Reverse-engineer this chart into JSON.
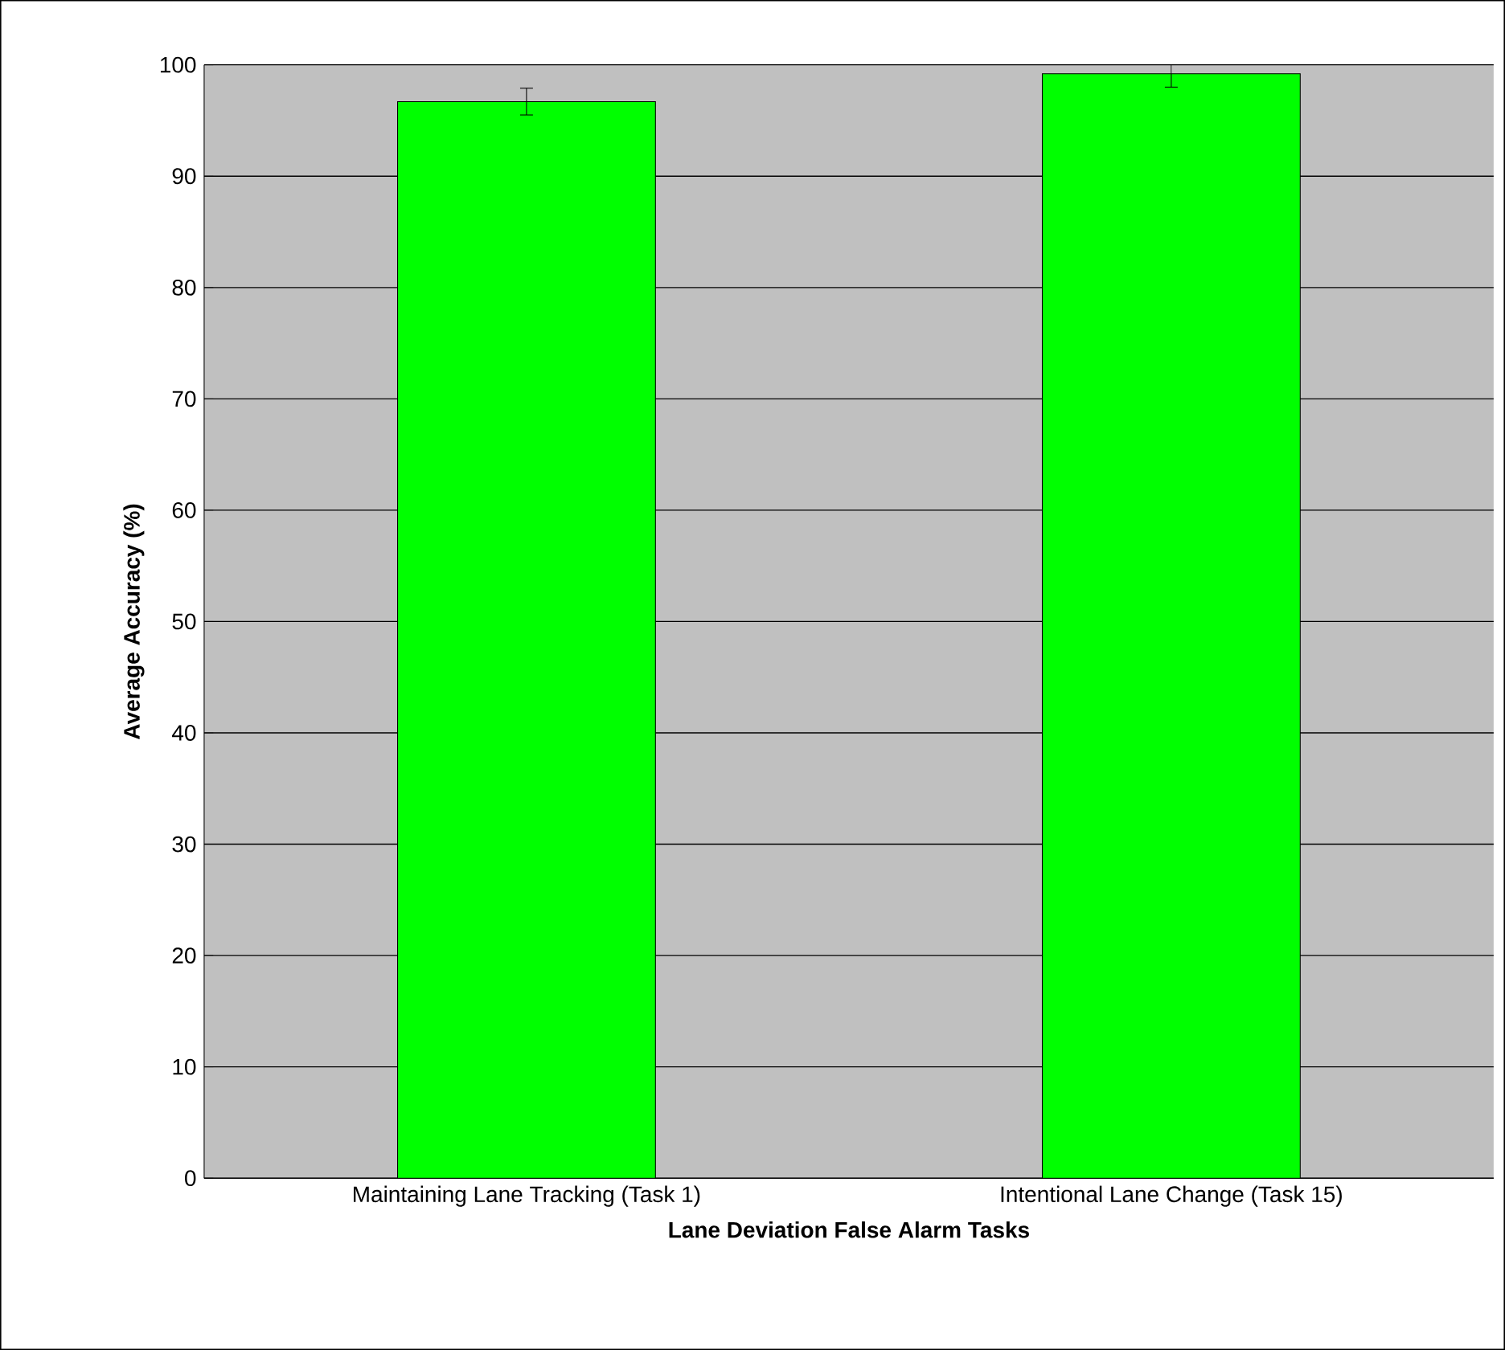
{
  "chart_data": {
    "type": "bar",
    "xlabel": "Lane Deviation False Alarm Tasks",
    "ylabel": "Average Accuracy (%)",
    "categories": [
      "Maintaining Lane Tracking (Task 1)",
      "Intentional Lane Change (Task 15)"
    ],
    "values": [
      96.7,
      99.2
    ],
    "errors": [
      1.2,
      1.2
    ],
    "color": "#00ff00",
    "ylim": [
      0,
      100
    ],
    "yticks": [
      0,
      10,
      20,
      30,
      40,
      50,
      60,
      70,
      80,
      90,
      100
    ],
    "grid": "y"
  }
}
